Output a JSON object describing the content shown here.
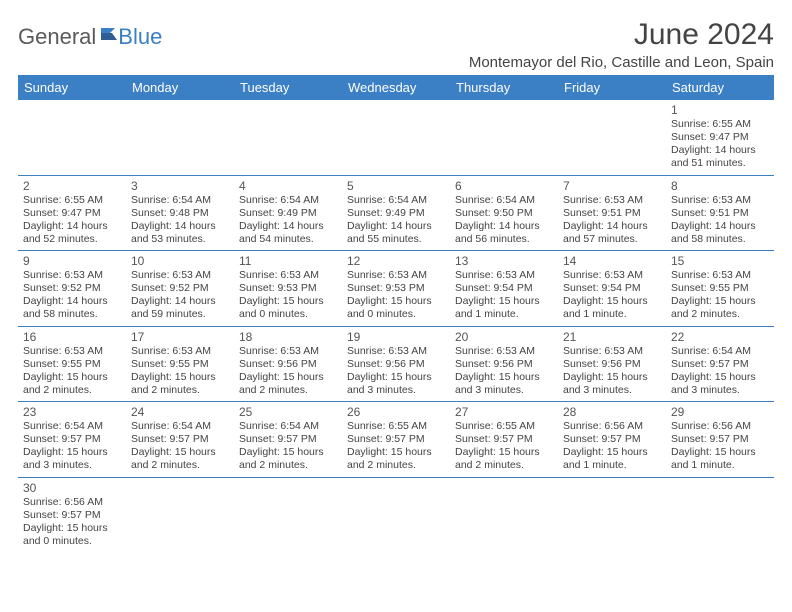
{
  "logo": {
    "part1": "General",
    "part2": "Blue"
  },
  "title": "June 2024",
  "location": "Montemayor del Rio, Castille and Leon, Spain",
  "colors": {
    "header_bg": "#3b7fc4",
    "header_text": "#ffffff",
    "row_border": "#3b7fc4",
    "text": "#444444",
    "logo_gray": "#5a5a5a",
    "logo_blue": "#3b7fc4",
    "background": "#ffffff"
  },
  "weekdays": [
    "Sunday",
    "Monday",
    "Tuesday",
    "Wednesday",
    "Thursday",
    "Friday",
    "Saturday"
  ],
  "weeks": [
    [
      null,
      null,
      null,
      null,
      null,
      null,
      {
        "n": "1",
        "sr": "Sunrise: 6:55 AM",
        "ss": "Sunset: 9:47 PM",
        "dl": "Daylight: 14 hours and 51 minutes."
      }
    ],
    [
      {
        "n": "2",
        "sr": "Sunrise: 6:55 AM",
        "ss": "Sunset: 9:47 PM",
        "dl": "Daylight: 14 hours and 52 minutes."
      },
      {
        "n": "3",
        "sr": "Sunrise: 6:54 AM",
        "ss": "Sunset: 9:48 PM",
        "dl": "Daylight: 14 hours and 53 minutes."
      },
      {
        "n": "4",
        "sr": "Sunrise: 6:54 AM",
        "ss": "Sunset: 9:49 PM",
        "dl": "Daylight: 14 hours and 54 minutes."
      },
      {
        "n": "5",
        "sr": "Sunrise: 6:54 AM",
        "ss": "Sunset: 9:49 PM",
        "dl": "Daylight: 14 hours and 55 minutes."
      },
      {
        "n": "6",
        "sr": "Sunrise: 6:54 AM",
        "ss": "Sunset: 9:50 PM",
        "dl": "Daylight: 14 hours and 56 minutes."
      },
      {
        "n": "7",
        "sr": "Sunrise: 6:53 AM",
        "ss": "Sunset: 9:51 PM",
        "dl": "Daylight: 14 hours and 57 minutes."
      },
      {
        "n": "8",
        "sr": "Sunrise: 6:53 AM",
        "ss": "Sunset: 9:51 PM",
        "dl": "Daylight: 14 hours and 58 minutes."
      }
    ],
    [
      {
        "n": "9",
        "sr": "Sunrise: 6:53 AM",
        "ss": "Sunset: 9:52 PM",
        "dl": "Daylight: 14 hours and 58 minutes."
      },
      {
        "n": "10",
        "sr": "Sunrise: 6:53 AM",
        "ss": "Sunset: 9:52 PM",
        "dl": "Daylight: 14 hours and 59 minutes."
      },
      {
        "n": "11",
        "sr": "Sunrise: 6:53 AM",
        "ss": "Sunset: 9:53 PM",
        "dl": "Daylight: 15 hours and 0 minutes."
      },
      {
        "n": "12",
        "sr": "Sunrise: 6:53 AM",
        "ss": "Sunset: 9:53 PM",
        "dl": "Daylight: 15 hours and 0 minutes."
      },
      {
        "n": "13",
        "sr": "Sunrise: 6:53 AM",
        "ss": "Sunset: 9:54 PM",
        "dl": "Daylight: 15 hours and 1 minute."
      },
      {
        "n": "14",
        "sr": "Sunrise: 6:53 AM",
        "ss": "Sunset: 9:54 PM",
        "dl": "Daylight: 15 hours and 1 minute."
      },
      {
        "n": "15",
        "sr": "Sunrise: 6:53 AM",
        "ss": "Sunset: 9:55 PM",
        "dl": "Daylight: 15 hours and 2 minutes."
      }
    ],
    [
      {
        "n": "16",
        "sr": "Sunrise: 6:53 AM",
        "ss": "Sunset: 9:55 PM",
        "dl": "Daylight: 15 hours and 2 minutes."
      },
      {
        "n": "17",
        "sr": "Sunrise: 6:53 AM",
        "ss": "Sunset: 9:55 PM",
        "dl": "Daylight: 15 hours and 2 minutes."
      },
      {
        "n": "18",
        "sr": "Sunrise: 6:53 AM",
        "ss": "Sunset: 9:56 PM",
        "dl": "Daylight: 15 hours and 2 minutes."
      },
      {
        "n": "19",
        "sr": "Sunrise: 6:53 AM",
        "ss": "Sunset: 9:56 PM",
        "dl": "Daylight: 15 hours and 3 minutes."
      },
      {
        "n": "20",
        "sr": "Sunrise: 6:53 AM",
        "ss": "Sunset: 9:56 PM",
        "dl": "Daylight: 15 hours and 3 minutes."
      },
      {
        "n": "21",
        "sr": "Sunrise: 6:53 AM",
        "ss": "Sunset: 9:56 PM",
        "dl": "Daylight: 15 hours and 3 minutes."
      },
      {
        "n": "22",
        "sr": "Sunrise: 6:54 AM",
        "ss": "Sunset: 9:57 PM",
        "dl": "Daylight: 15 hours and 3 minutes."
      }
    ],
    [
      {
        "n": "23",
        "sr": "Sunrise: 6:54 AM",
        "ss": "Sunset: 9:57 PM",
        "dl": "Daylight: 15 hours and 3 minutes."
      },
      {
        "n": "24",
        "sr": "Sunrise: 6:54 AM",
        "ss": "Sunset: 9:57 PM",
        "dl": "Daylight: 15 hours and 2 minutes."
      },
      {
        "n": "25",
        "sr": "Sunrise: 6:54 AM",
        "ss": "Sunset: 9:57 PM",
        "dl": "Daylight: 15 hours and 2 minutes."
      },
      {
        "n": "26",
        "sr": "Sunrise: 6:55 AM",
        "ss": "Sunset: 9:57 PM",
        "dl": "Daylight: 15 hours and 2 minutes."
      },
      {
        "n": "27",
        "sr": "Sunrise: 6:55 AM",
        "ss": "Sunset: 9:57 PM",
        "dl": "Daylight: 15 hours and 2 minutes."
      },
      {
        "n": "28",
        "sr": "Sunrise: 6:56 AM",
        "ss": "Sunset: 9:57 PM",
        "dl": "Daylight: 15 hours and 1 minute."
      },
      {
        "n": "29",
        "sr": "Sunrise: 6:56 AM",
        "ss": "Sunset: 9:57 PM",
        "dl": "Daylight: 15 hours and 1 minute."
      }
    ],
    [
      {
        "n": "30",
        "sr": "Sunrise: 6:56 AM",
        "ss": "Sunset: 9:57 PM",
        "dl": "Daylight: 15 hours and 0 minutes."
      },
      null,
      null,
      null,
      null,
      null,
      null
    ]
  ]
}
